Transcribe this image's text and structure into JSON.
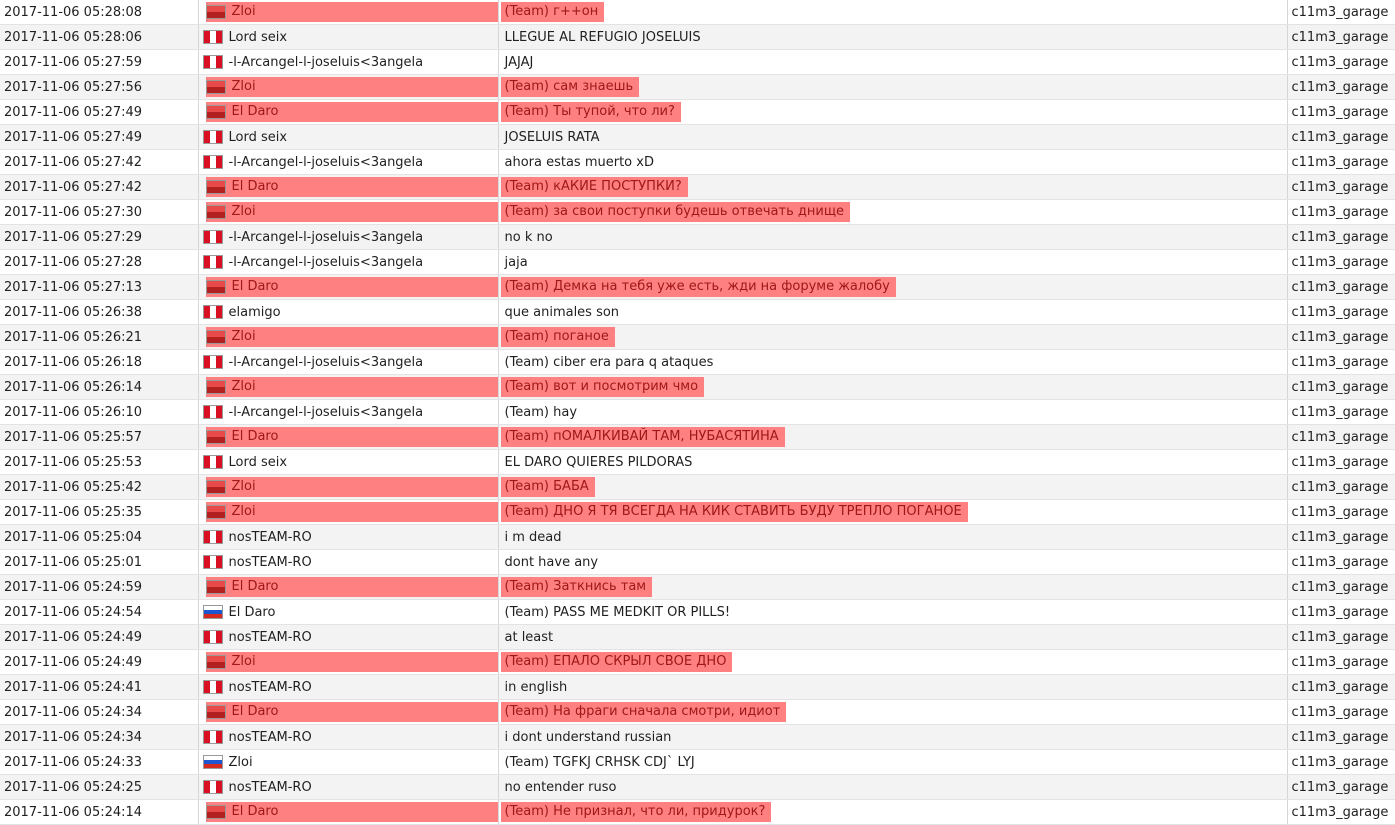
{
  "rows": [
    {
      "time": "2017-11-06 05:28:08",
      "name": "Zloi",
      "flag": "ro",
      "message": "(Team) г++он",
      "map": "c11m3_garage",
      "highlight": true
    },
    {
      "time": "2017-11-06 05:28:06",
      "name": "Lord seix",
      "flag": "pe",
      "message": "LLEGUE AL REFUGIO JOSELUIS",
      "map": "c11m3_garage",
      "highlight": false
    },
    {
      "time": "2017-11-06 05:27:59",
      "name": "-l-Arcangel-l-joseluis<3angela",
      "flag": "pe",
      "message": "JAJAJ",
      "map": "c11m3_garage",
      "highlight": false
    },
    {
      "time": "2017-11-06 05:27:56",
      "name": "Zloi",
      "flag": "ro",
      "message": "(Team) сам знаешь",
      "map": "c11m3_garage",
      "highlight": true
    },
    {
      "time": "2017-11-06 05:27:49",
      "name": "El Daro",
      "flag": "ro",
      "message": "(Team) Ты тупой, что ли?",
      "map": "c11m3_garage",
      "highlight": true
    },
    {
      "time": "2017-11-06 05:27:49",
      "name": "Lord seix",
      "flag": "pe",
      "message": "JOSELUIS RATA",
      "map": "c11m3_garage",
      "highlight": false
    },
    {
      "time": "2017-11-06 05:27:42",
      "name": "-l-Arcangel-l-joseluis<3angela",
      "flag": "pe",
      "message": "ahora estas muerto xD",
      "map": "c11m3_garage",
      "highlight": false
    },
    {
      "time": "2017-11-06 05:27:42",
      "name": "El Daro",
      "flag": "ro",
      "message": "(Team) кАКИЕ ПОСТУПКИ?",
      "map": "c11m3_garage",
      "highlight": true
    },
    {
      "time": "2017-11-06 05:27:30",
      "name": "Zloi",
      "flag": "ro",
      "message": "(Team) за свои поступки будешь отвечать днище",
      "map": "c11m3_garage",
      "highlight": true
    },
    {
      "time": "2017-11-06 05:27:29",
      "name": "-l-Arcangel-l-joseluis<3angela",
      "flag": "pe",
      "message": "no k no",
      "map": "c11m3_garage",
      "highlight": false
    },
    {
      "time": "2017-11-06 05:27:28",
      "name": "-l-Arcangel-l-joseluis<3angela",
      "flag": "pe",
      "message": "jaja",
      "map": "c11m3_garage",
      "highlight": false
    },
    {
      "time": "2017-11-06 05:27:13",
      "name": "El Daro",
      "flag": "ro",
      "message": "(Team) Демка на тебя уже есть, жди на форуме жалобу",
      "map": "c11m3_garage",
      "highlight": true
    },
    {
      "time": "2017-11-06 05:26:38",
      "name": "elamigo",
      "flag": "pe",
      "message": "que animales son",
      "map": "c11m3_garage",
      "highlight": false
    },
    {
      "time": "2017-11-06 05:26:21",
      "name": "Zloi",
      "flag": "ro",
      "message": "(Team) поганое",
      "map": "c11m3_garage",
      "highlight": true
    },
    {
      "time": "2017-11-06 05:26:18",
      "name": "-l-Arcangel-l-joseluis<3angela",
      "flag": "pe",
      "message": "(Team) ciber era para q ataques",
      "map": "c11m3_garage",
      "highlight": false
    },
    {
      "time": "2017-11-06 05:26:14",
      "name": "Zloi",
      "flag": "ro",
      "message": "(Team) вот и посмотрим чмо",
      "map": "c11m3_garage",
      "highlight": true
    },
    {
      "time": "2017-11-06 05:26:10",
      "name": "-l-Arcangel-l-joseluis<3angela",
      "flag": "pe",
      "message": "(Team) hay",
      "map": "c11m3_garage",
      "highlight": false
    },
    {
      "time": "2017-11-06 05:25:57",
      "name": "El Daro",
      "flag": "ro",
      "message": "(Team) пОМАЛКИВАЙ ТАМ, НУБАСЯТИНА",
      "map": "c11m3_garage",
      "highlight": true
    },
    {
      "time": "2017-11-06 05:25:53",
      "name": "Lord seix",
      "flag": "pe",
      "message": "EL DARO QUIERES PILDORAS",
      "map": "c11m3_garage",
      "highlight": false
    },
    {
      "time": "2017-11-06 05:25:42",
      "name": "Zloi",
      "flag": "ro",
      "message": "(Team) БАБА",
      "map": "c11m3_garage",
      "highlight": true
    },
    {
      "time": "2017-11-06 05:25:35",
      "name": "Zloi",
      "flag": "ro",
      "message": "(Team) ДНО Я ТЯ ВСЕГДА НА КИК СТАВИТЬ БУДУ ТРЕПЛО ПОГАНОЕ",
      "map": "c11m3_garage",
      "highlight": true
    },
    {
      "time": "2017-11-06 05:25:04",
      "name": "nosTEAM-RO",
      "flag": "pe",
      "message": "i m dead",
      "map": "c11m3_garage",
      "highlight": false
    },
    {
      "time": "2017-11-06 05:25:01",
      "name": "nosTEAM-RO",
      "flag": "pe",
      "message": "dont have any",
      "map": "c11m3_garage",
      "highlight": false
    },
    {
      "time": "2017-11-06 05:24:59",
      "name": "El Daro",
      "flag": "ro",
      "message": "(Team) Заткнись там",
      "map": "c11m3_garage",
      "highlight": true
    },
    {
      "time": "2017-11-06 05:24:54",
      "name": "El Daro",
      "flag": "ru",
      "message": "(Team) PASS ME MEDKIT OR PILLS!",
      "map": "c11m3_garage",
      "highlight": false
    },
    {
      "time": "2017-11-06 05:24:49",
      "name": "nosTEAM-RO",
      "flag": "pe",
      "message": "at least",
      "map": "c11m3_garage",
      "highlight": false
    },
    {
      "time": "2017-11-06 05:24:49",
      "name": "Zloi",
      "flag": "ro",
      "message": "(Team) ЕПАЛО СКРЫЛ СВОЕ ДНО",
      "map": "c11m3_garage",
      "highlight": true
    },
    {
      "time": "2017-11-06 05:24:41",
      "name": "nosTEAM-RO",
      "flag": "pe",
      "message": "in english",
      "map": "c11m3_garage",
      "highlight": false
    },
    {
      "time": "2017-11-06 05:24:34",
      "name": "El Daro",
      "flag": "ro",
      "message": "(Team) На фраги сначала смотри, идиот",
      "map": "c11m3_garage",
      "highlight": true
    },
    {
      "time": "2017-11-06 05:24:34",
      "name": "nosTEAM-RO",
      "flag": "pe",
      "message": "i dont understand russian",
      "map": "c11m3_garage",
      "highlight": false
    },
    {
      "time": "2017-11-06 05:24:33",
      "name": "Zloi",
      "flag": "ru",
      "message": "(Team) TGFKJ CRHSK CDJ` LYJ",
      "map": "c11m3_garage",
      "highlight": false
    },
    {
      "time": "2017-11-06 05:24:25",
      "name": "nosTEAM-RO",
      "flag": "pe",
      "message": "no entender ruso",
      "map": "c11m3_garage",
      "highlight": false
    },
    {
      "time": "2017-11-06 05:24:14",
      "name": "El Daro",
      "flag": "ro",
      "message": "(Team) Не признал, что ли, придурок?",
      "map": "c11m3_garage",
      "highlight": true
    }
  ]
}
